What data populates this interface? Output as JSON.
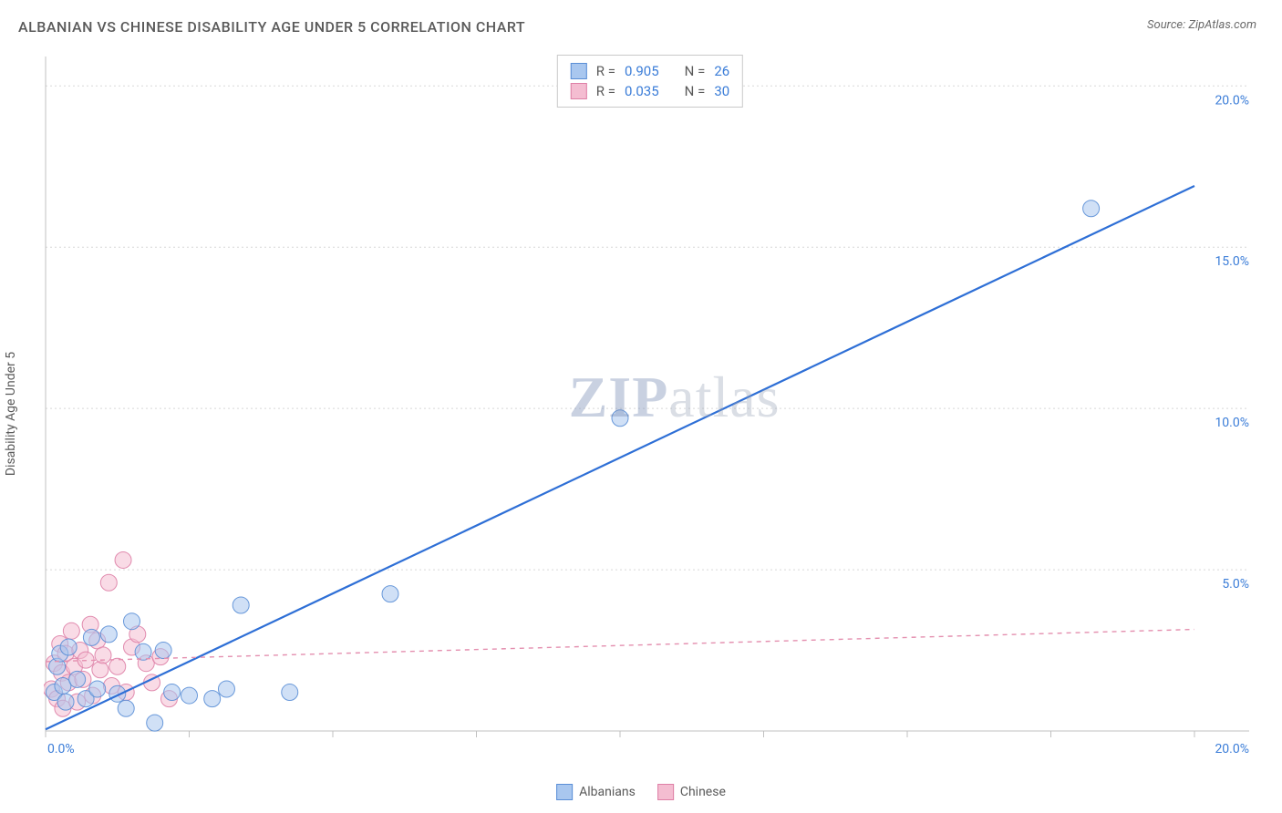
{
  "header": {
    "title": "ALBANIAN VS CHINESE DISABILITY AGE UNDER 5 CORRELATION CHART",
    "source_prefix": "Source: ",
    "source_name": "ZipAtlas.com"
  },
  "watermark": {
    "zip": "ZIP",
    "atlas": "atlas"
  },
  "chart": {
    "type": "scatter",
    "ylabel": "Disability Age Under 5",
    "background_color": "#ffffff",
    "grid_color": "#d8d8d8",
    "axis_color": "#c0c0c0",
    "xlim": [
      0,
      20
    ],
    "ylim": [
      0,
      20.8
    ],
    "x_format": "percent_1dp",
    "y_format": "percent_1dp",
    "xticks": [
      0,
      2.5,
      5,
      7.5,
      10,
      12.5,
      15,
      17.5,
      20
    ],
    "xtick_labels": {
      "0": "0.0%",
      "20": "20.0%"
    },
    "yticks": [
      5,
      10,
      15,
      20
    ],
    "ytick_labels": {
      "5": "5.0%",
      "10": "10.0%",
      "15": "15.0%",
      "20": "20.0%"
    },
    "tick_label_color": "#3b7dd8",
    "tick_fontsize": 14,
    "marker_radius": 9,
    "marker_opacity": 0.55,
    "marker_stroke_opacity": 0.9,
    "series": [
      {
        "name": "Albanians",
        "color_fill": "#a9c7ef",
        "color_stroke": "#5a8ed6",
        "trend_color": "#2e6fd6",
        "trend_width": 2.2,
        "trend_dash": "none",
        "trend": {
          "x1": 0,
          "y1": 0.05,
          "x2": 20,
          "y2": 16.9
        },
        "R": "0.905",
        "N": "26",
        "points": [
          [
            0.15,
            1.2
          ],
          [
            0.2,
            2.0
          ],
          [
            0.25,
            2.4
          ],
          [
            0.3,
            1.4
          ],
          [
            0.35,
            0.9
          ],
          [
            0.4,
            2.6
          ],
          [
            0.55,
            1.6
          ],
          [
            0.7,
            1.0
          ],
          [
            0.8,
            2.9
          ],
          [
            0.9,
            1.3
          ],
          [
            1.1,
            3.0
          ],
          [
            1.25,
            1.15
          ],
          [
            1.4,
            0.7
          ],
          [
            1.5,
            3.4
          ],
          [
            1.7,
            2.45
          ],
          [
            1.9,
            0.25
          ],
          [
            2.05,
            2.5
          ],
          [
            2.2,
            1.2
          ],
          [
            2.5,
            1.1
          ],
          [
            2.9,
            1.0
          ],
          [
            3.15,
            1.3
          ],
          [
            3.4,
            3.9
          ],
          [
            4.25,
            1.2
          ],
          [
            6.0,
            4.25
          ],
          [
            10.0,
            9.7
          ],
          [
            18.2,
            16.2
          ]
        ]
      },
      {
        "name": "Chinese",
        "color_fill": "#f4bdd1",
        "color_stroke": "#de7fa6",
        "trend_color": "#e48faf",
        "trend_width": 1.4,
        "trend_dash": "5,5",
        "trend": {
          "x1": 0,
          "y1": 2.15,
          "x2": 20,
          "y2": 3.15
        },
        "R": "0.035",
        "N": "30",
        "points": [
          [
            0.1,
            1.3
          ],
          [
            0.15,
            2.1
          ],
          [
            0.2,
            1.0
          ],
          [
            0.25,
            2.7
          ],
          [
            0.28,
            1.8
          ],
          [
            0.3,
            0.7
          ],
          [
            0.35,
            2.4
          ],
          [
            0.4,
            1.5
          ],
          [
            0.45,
            3.1
          ],
          [
            0.5,
            2.0
          ],
          [
            0.55,
            0.9
          ],
          [
            0.6,
            2.5
          ],
          [
            0.65,
            1.6
          ],
          [
            0.7,
            2.2
          ],
          [
            0.78,
            3.3
          ],
          [
            0.82,
            1.1
          ],
          [
            0.9,
            2.8
          ],
          [
            0.95,
            1.9
          ],
          [
            1.0,
            2.35
          ],
          [
            1.1,
            4.6
          ],
          [
            1.15,
            1.4
          ],
          [
            1.25,
            2.0
          ],
          [
            1.35,
            5.3
          ],
          [
            1.4,
            1.2
          ],
          [
            1.5,
            2.6
          ],
          [
            1.6,
            3.0
          ],
          [
            1.75,
            2.1
          ],
          [
            1.85,
            1.5
          ],
          [
            2.0,
            2.3
          ],
          [
            2.15,
            1.0
          ]
        ]
      }
    ],
    "legend_bottom": [
      {
        "label": "Albanians",
        "fill": "#a9c7ef",
        "stroke": "#5a8ed6"
      },
      {
        "label": "Chinese",
        "fill": "#f4bdd1",
        "stroke": "#de7fa6"
      }
    ]
  }
}
